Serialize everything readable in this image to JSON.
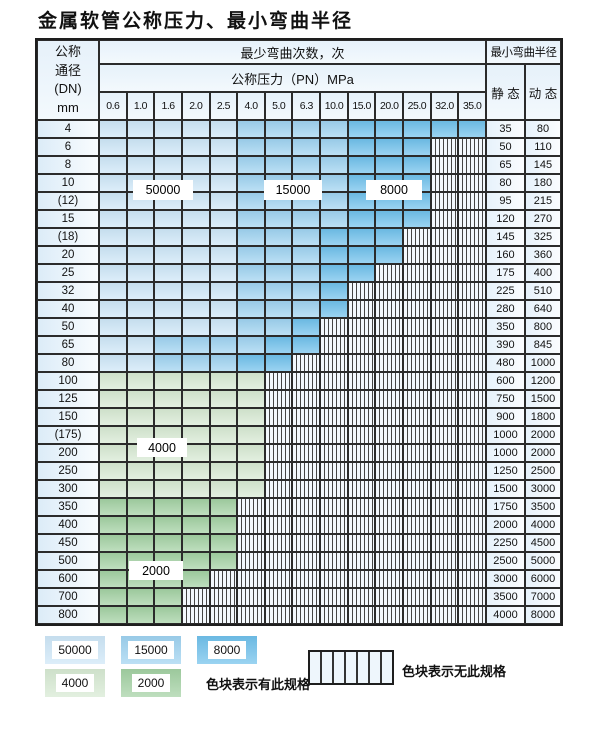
{
  "title": "金属软管公称压力、最小弯曲半径",
  "table": {
    "corner": [
      "公称",
      "通径",
      "(DN)",
      "mm"
    ],
    "bend_header": "最少弯曲次数，次",
    "pressure_header": "公称压力（PN）MPa",
    "pressures": [
      "0.6",
      "1.0",
      "1.6",
      "2.0",
      "2.5",
      "4.0",
      "5.0",
      "6.3",
      "10.0",
      "15.0",
      "20.0",
      "25.0",
      "32.0",
      "35.0"
    ],
    "radius_header": "最小弯曲半径",
    "static_header": "静 态",
    "dynamic_header": "动 态",
    "band_codes": {
      "L": "50000",
      "M": "15000",
      "D": "8000",
      "G": "4000",
      "E": "2000",
      "X": "无此规格"
    },
    "rows": [
      {
        "dn": "4",
        "static": "35",
        "dynamic": "80",
        "cells": [
          "L",
          "L",
          "L",
          "L",
          "L",
          "M",
          "M",
          "M",
          "M",
          "D",
          "D",
          "D",
          "D",
          "D"
        ]
      },
      {
        "dn": "6",
        "static": "50",
        "dynamic": "110",
        "cells": [
          "L",
          "L",
          "L",
          "L",
          "L",
          "M",
          "M",
          "M",
          "M",
          "D",
          "D",
          "D",
          "X",
          "X"
        ]
      },
      {
        "dn": "8",
        "static": "65",
        "dynamic": "145",
        "cells": [
          "L",
          "L",
          "L",
          "L",
          "L",
          "M",
          "M",
          "M",
          "M",
          "D",
          "D",
          "D",
          "X",
          "X"
        ]
      },
      {
        "dn": "10",
        "static": "80",
        "dynamic": "180",
        "cells": [
          "L",
          "L",
          "L",
          "L",
          "L",
          "M",
          "M",
          "M",
          "M",
          "D",
          "D",
          "D",
          "X",
          "X"
        ]
      },
      {
        "dn": "(12)",
        "static": "95",
        "dynamic": "215",
        "cells": [
          "L",
          "L",
          "L",
          "L",
          "L",
          "M",
          "M",
          "M",
          "M",
          "D",
          "D",
          "D",
          "X",
          "X"
        ]
      },
      {
        "dn": "15",
        "static": "120",
        "dynamic": "270",
        "cells": [
          "L",
          "L",
          "L",
          "L",
          "L",
          "M",
          "M",
          "M",
          "M",
          "D",
          "D",
          "D",
          "X",
          "X"
        ]
      },
      {
        "dn": "(18)",
        "static": "145",
        "dynamic": "325",
        "cells": [
          "L",
          "L",
          "L",
          "L",
          "L",
          "M",
          "M",
          "M",
          "D",
          "D",
          "D",
          "X",
          "X",
          "X"
        ]
      },
      {
        "dn": "20",
        "static": "160",
        "dynamic": "360",
        "cells": [
          "L",
          "L",
          "L",
          "L",
          "L",
          "M",
          "M",
          "M",
          "D",
          "D",
          "D",
          "X",
          "X",
          "X"
        ]
      },
      {
        "dn": "25",
        "static": "175",
        "dynamic": "400",
        "cells": [
          "L",
          "L",
          "L",
          "L",
          "L",
          "M",
          "M",
          "M",
          "D",
          "D",
          "X",
          "X",
          "X",
          "X"
        ]
      },
      {
        "dn": "32",
        "static": "225",
        "dynamic": "510",
        "cells": [
          "L",
          "L",
          "L",
          "L",
          "L",
          "M",
          "M",
          "M",
          "D",
          "X",
          "X",
          "X",
          "X",
          "X"
        ]
      },
      {
        "dn": "40",
        "static": "280",
        "dynamic": "640",
        "cells": [
          "L",
          "L",
          "L",
          "L",
          "L",
          "M",
          "M",
          "M",
          "D",
          "X",
          "X",
          "X",
          "X",
          "X"
        ]
      },
      {
        "dn": "50",
        "static": "350",
        "dynamic": "800",
        "cells": [
          "L",
          "L",
          "L",
          "L",
          "L",
          "M",
          "M",
          "D",
          "X",
          "X",
          "X",
          "X",
          "X",
          "X"
        ]
      },
      {
        "dn": "65",
        "static": "390",
        "dynamic": "845",
        "cells": [
          "L",
          "L",
          "M",
          "M",
          "M",
          "M",
          "D",
          "D",
          "X",
          "X",
          "X",
          "X",
          "X",
          "X"
        ]
      },
      {
        "dn": "80",
        "static": "480",
        "dynamic": "1000",
        "cells": [
          "L",
          "L",
          "M",
          "M",
          "M",
          "D",
          "D",
          "X",
          "X",
          "X",
          "X",
          "X",
          "X",
          "X"
        ]
      },
      {
        "dn": "100",
        "static": "600",
        "dynamic": "1200",
        "cells": [
          "G",
          "G",
          "G",
          "G",
          "G",
          "G",
          "X",
          "X",
          "X",
          "X",
          "X",
          "X",
          "X",
          "X"
        ]
      },
      {
        "dn": "125",
        "static": "750",
        "dynamic": "1500",
        "cells": [
          "G",
          "G",
          "G",
          "G",
          "G",
          "G",
          "X",
          "X",
          "X",
          "X",
          "X",
          "X",
          "X",
          "X"
        ]
      },
      {
        "dn": "150",
        "static": "900",
        "dynamic": "1800",
        "cells": [
          "G",
          "G",
          "G",
          "G",
          "G",
          "G",
          "X",
          "X",
          "X",
          "X",
          "X",
          "X",
          "X",
          "X"
        ]
      },
      {
        "dn": "(175)",
        "static": "1000",
        "dynamic": "2000",
        "cells": [
          "G",
          "G",
          "G",
          "G",
          "G",
          "G",
          "X",
          "X",
          "X",
          "X",
          "X",
          "X",
          "X",
          "X"
        ]
      },
      {
        "dn": "200",
        "static": "1000",
        "dynamic": "2000",
        "cells": [
          "G",
          "G",
          "G",
          "G",
          "G",
          "G",
          "X",
          "X",
          "X",
          "X",
          "X",
          "X",
          "X",
          "X"
        ]
      },
      {
        "dn": "250",
        "static": "1250",
        "dynamic": "2500",
        "cells": [
          "G",
          "G",
          "G",
          "G",
          "G",
          "G",
          "X",
          "X",
          "X",
          "X",
          "X",
          "X",
          "X",
          "X"
        ]
      },
      {
        "dn": "300",
        "static": "1500",
        "dynamic": "3000",
        "cells": [
          "G",
          "G",
          "G",
          "G",
          "G",
          "G",
          "X",
          "X",
          "X",
          "X",
          "X",
          "X",
          "X",
          "X"
        ]
      },
      {
        "dn": "350",
        "static": "1750",
        "dynamic": "3500",
        "cells": [
          "E",
          "E",
          "E",
          "E",
          "E",
          "X",
          "X",
          "X",
          "X",
          "X",
          "X",
          "X",
          "X",
          "X"
        ]
      },
      {
        "dn": "400",
        "static": "2000",
        "dynamic": "4000",
        "cells": [
          "E",
          "E",
          "E",
          "E",
          "E",
          "X",
          "X",
          "X",
          "X",
          "X",
          "X",
          "X",
          "X",
          "X"
        ]
      },
      {
        "dn": "450",
        "static": "2250",
        "dynamic": "4500",
        "cells": [
          "E",
          "E",
          "E",
          "E",
          "E",
          "X",
          "X",
          "X",
          "X",
          "X",
          "X",
          "X",
          "X",
          "X"
        ]
      },
      {
        "dn": "500",
        "static": "2500",
        "dynamic": "5000",
        "cells": [
          "E",
          "E",
          "E",
          "E",
          "E",
          "X",
          "X",
          "X",
          "X",
          "X",
          "X",
          "X",
          "X",
          "X"
        ]
      },
      {
        "dn": "600",
        "static": "3000",
        "dynamic": "6000",
        "cells": [
          "E",
          "E",
          "E",
          "E",
          "X",
          "X",
          "X",
          "X",
          "X",
          "X",
          "X",
          "X",
          "X",
          "X"
        ]
      },
      {
        "dn": "700",
        "static": "3500",
        "dynamic": "7000",
        "cells": [
          "E",
          "E",
          "E",
          "X",
          "X",
          "X",
          "X",
          "X",
          "X",
          "X",
          "X",
          "X",
          "X",
          "X"
        ]
      },
      {
        "dn": "800",
        "static": "4000",
        "dynamic": "8000",
        "cells": [
          "E",
          "E",
          "E",
          "X",
          "X",
          "X",
          "X",
          "X",
          "X",
          "X",
          "X",
          "X",
          "X",
          "X"
        ]
      }
    ]
  },
  "overlays": {
    "b50000": "50000",
    "b15000": "15000",
    "b8000": "8000",
    "g4000": "4000",
    "g2000": "2000"
  },
  "legend": {
    "items": [
      {
        "label": "50000",
        "band": "L"
      },
      {
        "label": "15000",
        "band": "M"
      },
      {
        "label": "8000",
        "band": "D"
      },
      {
        "label": "4000",
        "band": "G"
      },
      {
        "label": "2000",
        "band": "E"
      }
    ],
    "has_spec_note": "色块表示有此规格",
    "no_spec_note": "色块表示无此规格"
  },
  "colors": {
    "band_50000": "#cde6f7",
    "band_15000": "#9ed2f0",
    "band_8000": "#6fc0eb",
    "band_4000": "#d6e9d2",
    "band_2000": "#a2d0a2",
    "border": "#2b2b2b",
    "hatch_line": "#454545"
  }
}
